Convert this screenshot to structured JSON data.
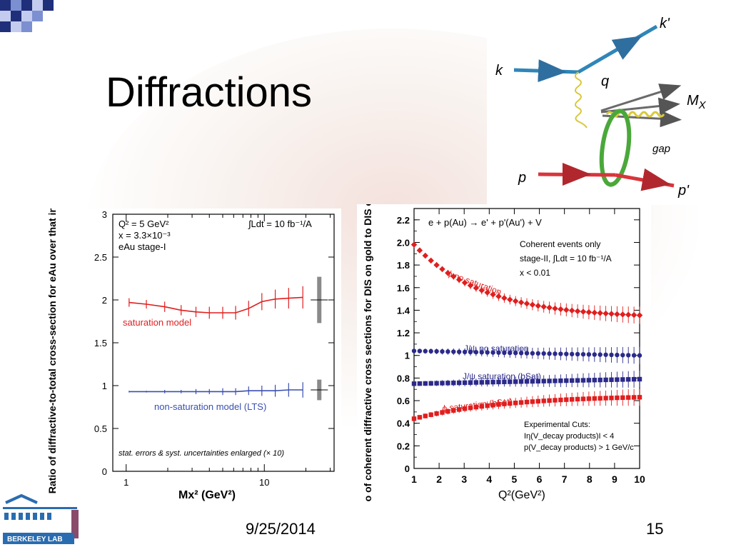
{
  "slide": {
    "title": "Diffractions",
    "footer_date": "9/25/2014",
    "page_number": "15",
    "logo_text": "BERKELEY LAB"
  },
  "diagram": {
    "labels": {
      "k": "k",
      "k_prime": "k'",
      "q": "q",
      "Mx": "M",
      "Mx_sub": "X",
      "gap": "gap",
      "p": "p",
      "p_prime": "p'"
    },
    "colors": {
      "electron": "#2f86b8",
      "proton": "#d9343b",
      "pomeron": "#4aa83a",
      "gluon": "#d8c83a",
      "hadrons": "#6a6a6a"
    }
  },
  "chart_data": [
    {
      "type": "line",
      "annotations": [
        "Q² = 5 GeV²",
        "x = 3.3×10⁻³",
        "eAu stage-I",
        "∫Ldt = 10 fb⁻¹/A",
        "stat. errors & syst. uncertainties enlarged (× 10)"
      ],
      "xlabel": "Mx² (GeV²)",
      "ylabel": "Ratio of diffractive-to-total cross-section for eAu over that in ep",
      "xscale": "log",
      "xlim": [
        0.8,
        32
      ],
      "ylim": [
        0,
        3
      ],
      "yticks": [
        "0",
        "0.5",
        "1",
        "1.5",
        "2",
        "2.5",
        "3"
      ],
      "xticks": [
        "1",
        "10"
      ],
      "series": [
        {
          "name": "saturation model",
          "color": "#e01e1e",
          "x": [
            1.05,
            1.4,
            1.9,
            2.5,
            3.2,
            4.0,
            5.0,
            6.2,
            7.7,
            9.6,
            12,
            15,
            19
          ],
          "y": [
            1.97,
            1.95,
            1.92,
            1.88,
            1.86,
            1.85,
            1.85,
            1.85,
            1.9,
            1.98,
            2.01,
            2.02,
            2.03
          ],
          "yerr": [
            0.05,
            0.05,
            0.06,
            0.06,
            0.06,
            0.07,
            0.07,
            0.08,
            0.09,
            0.1,
            0.11,
            0.12,
            0.13
          ]
        },
        {
          "name": "non-saturation model (LTS)",
          "color": "#3a4fb0",
          "x": [
            1.05,
            1.4,
            1.9,
            2.5,
            3.2,
            4.0,
            5.0,
            6.2,
            7.7,
            9.6,
            12,
            15,
            19
          ],
          "y": [
            0.93,
            0.93,
            0.93,
            0.93,
            0.93,
            0.93,
            0.93,
            0.93,
            0.94,
            0.94,
            0.94,
            0.95,
            0.95
          ],
          "yerr": [
            0.01,
            0.01,
            0.02,
            0.02,
            0.03,
            0.03,
            0.04,
            0.04,
            0.05,
            0.06,
            0.07,
            0.08,
            0.09
          ]
        }
      ],
      "syst_bands": [
        {
          "y": 2.0,
          "half": 0.27
        },
        {
          "y": 0.95,
          "half": 0.12
        }
      ]
    },
    {
      "type": "scatter",
      "title": "e + p(Au) → e' + p'(Au') + V",
      "annotations": [
        "Coherent events only",
        "stage-II, ∫Ldt = 10 fb⁻¹/A",
        "x < 0.01",
        "Experimental Cuts:",
        "Iη(V_decay products)I < 4",
        "p(V_decay products) > 1 GeV/c"
      ],
      "xlabel": "Q²(GeV²)",
      "ylabel": "Ratio of coherent diffractive cross sections for DIS on gold to DIS on proton",
      "xlim": [
        1,
        10
      ],
      "ylim": [
        0,
        2.3
      ],
      "xticks": [
        "1",
        "2",
        "3",
        "4",
        "5",
        "6",
        "7",
        "8",
        "9",
        "10"
      ],
      "yticks": [
        "0",
        "0.2",
        "0.4",
        "0.6",
        "0.8",
        "1",
        "1.2",
        "1.4",
        "1.6",
        "1.8",
        "2.0",
        "2.2"
      ],
      "series": [
        {
          "name": "ϕ no saturation",
          "color": "#e01e1e",
          "marker": "diamond",
          "start": 1.98,
          "end": 1.33,
          "shape": "decay"
        },
        {
          "name": "J/ψ no saturation",
          "color": "#2b2a8a",
          "marker": "circle",
          "start": 1.04,
          "end": 1.0,
          "shape": "flat"
        },
        {
          "name": "J/ψ saturation (bSat)",
          "color": "#2b2a8a",
          "marker": "square",
          "start": 0.75,
          "end": 0.79,
          "shape": "flat"
        },
        {
          "name": "ϕ saturation (bSat)",
          "color": "#e01e1e",
          "marker": "square",
          "start": 0.44,
          "end": 0.63,
          "shape": "rise"
        }
      ]
    }
  ]
}
